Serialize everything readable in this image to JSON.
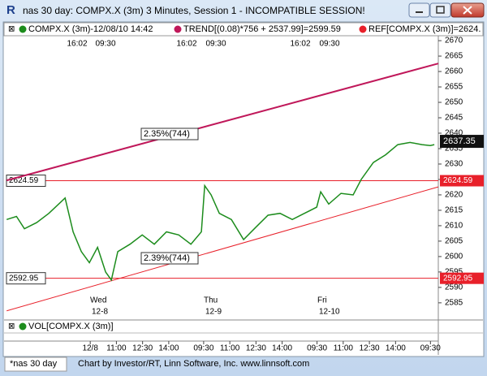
{
  "window": {
    "title": "nas 30 day: COMPX.X (3m) 3 Minutes, Session 1 - INCOMPATIBLE SESSION!"
  },
  "legend": [
    "COMPX.X (3m)-12/08/10 14:42",
    "TREND[(0.08)*756 + 2537.99]=2599.59",
    "REF[COMPX.X (3m)]=2624."
  ],
  "top_time_labels": [
    "16:02",
    "09:30",
    "16:02",
    "09:30",
    "16:02",
    "09:30"
  ],
  "day_labels": [
    [
      "Wed",
      "12-8"
    ],
    [
      "Thu",
      "12-9"
    ],
    [
      "Fri",
      "12-10"
    ]
  ],
  "annotations": [
    "2.35%(744)",
    "2.39%(744)"
  ],
  "volume_legend": "VOL[COMPX.X (3m)]",
  "tab": "*nas 30 day",
  "footer": "Chart by Investor/RT, Linn Software, Inc. www.linnsoft.com",
  "chart_data": {
    "type": "line",
    "x": [
      -4.79,
      -4.23,
      -3.77,
      -3.07,
      -2.37,
      -1.44,
      -0.98,
      -0.51,
      -0.05,
      0.42,
      0.88,
      1.21,
      1.58,
      2.28,
      2.98,
      3.67,
      4.37,
      5.07,
      5.77,
      6.37,
      6.56,
      6.93,
      7.4,
      8.09,
      8.79,
      9.49,
      10.19,
      10.88,
      11.58,
      12.28,
      12.98,
      13.21,
      13.67,
      14.37,
      15.07,
      15.53,
      16.23,
      16.93,
      17.63,
      18.33,
      19.02,
      19.49,
      19.72
    ],
    "series": [
      {
        "color": "#1c8c1c",
        "values": [
          2612,
          2613,
          2609,
          2611,
          2614,
          2619,
          2608,
          2601.6,
          2598,
          2603,
          2595,
          2592.4,
          2601.6,
          2604,
          2607,
          2604,
          2608,
          2607,
          2604,
          2608,
          2623,
          2620,
          2614,
          2612,
          2605.5,
          2609.5,
          2613.4,
          2614,
          2612,
          2614,
          2616,
          2621,
          2617,
          2620.5,
          2620,
          2625,
          2630.5,
          2633,
          2636.3,
          2637,
          2636.3,
          2636,
          2636.3
        ]
      }
    ],
    "trendlines": [
      {
        "color": "#c0185a",
        "x": [
          -4.79,
          19.95
        ],
        "values": [
          2624.7,
          2662.6
        ]
      },
      {
        "color": "#e8202a",
        "x": [
          -4.79,
          19.95
        ],
        "values": [
          2582.4,
          2622.6
        ]
      }
    ],
    "hlines": [
      {
        "color": "#e8202a",
        "value": 2624.59
      },
      {
        "color": "#e8202a",
        "value": 2592.95
      }
    ],
    "last_price": 2637.35,
    "xlim": [
      -4.8,
      19.95
    ],
    "ylim": [
      2579.7,
      2671.6
    ],
    "yticks": [
      2585,
      2590,
      2595,
      2600,
      2605,
      2610,
      2615,
      2620,
      2625,
      2630,
      2635,
      2640,
      2645,
      2650,
      2655,
      2660,
      2665,
      2670
    ],
    "xticks": [
      {
        "value": 0,
        "label": "12/8"
      },
      {
        "value": 1.5,
        "label": "11:00"
      },
      {
        "value": 3,
        "label": "12:30"
      },
      {
        "value": 4.5,
        "label": "14:00"
      },
      {
        "value": 6.5,
        "label": "09:30"
      },
      {
        "value": 8,
        "label": "11:00"
      },
      {
        "value": 9.5,
        "label": "12:30"
      },
      {
        "value": 11,
        "label": "14:00"
      },
      {
        "value": 13,
        "label": "09:30"
      },
      {
        "value": 14.5,
        "label": "11:00"
      },
      {
        "value": 16,
        "label": "12:30"
      },
      {
        "value": 17.5,
        "label": "14:00"
      },
      {
        "value": 19.5,
        "label": "09:30"
      }
    ],
    "grid": false
  }
}
